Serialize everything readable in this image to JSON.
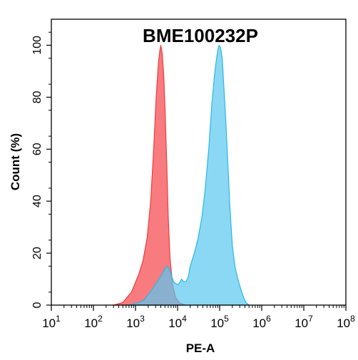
{
  "chart_data": {
    "type": "area",
    "title": "BME100232P",
    "xlabel": "PE-A",
    "ylabel": "Count  (%)",
    "x_scale": "log",
    "xlim": [
      10,
      100000000
    ],
    "ylim": [
      0,
      110
    ],
    "x_ticks": [
      {
        "base": "10",
        "exp": "1",
        "value": 10
      },
      {
        "base": "10",
        "exp": "2",
        "value": 100
      },
      {
        "base": "10",
        "exp": "3",
        "value": 1000
      },
      {
        "base": "10",
        "exp": "4",
        "value": 10000
      },
      {
        "base": "10",
        "exp": "5",
        "value": 100000
      },
      {
        "base": "10",
        "exp": "6",
        "value": 1000000
      },
      {
        "base": "10",
        "exp": "7",
        "value": 10000000
      },
      {
        "base": "10",
        "exp": "8",
        "value": 100000000
      }
    ],
    "y_ticks": [
      "0",
      "20",
      "40",
      "60",
      "80",
      "100"
    ],
    "y_tick_values": [
      0,
      20,
      40,
      60,
      80,
      100
    ],
    "grid": false,
    "legend": "none",
    "series": [
      {
        "color": "#f03c3c",
        "fill": "rgba(245,90,95,0.80)",
        "points": [
          [
            300,
            0
          ],
          [
            500,
            1
          ],
          [
            800,
            5
          ],
          [
            1200,
            12
          ],
          [
            1500,
            17
          ],
          [
            1900,
            26
          ],
          [
            2300,
            40
          ],
          [
            2700,
            60
          ],
          [
            3100,
            80
          ],
          [
            3500,
            93
          ],
          [
            3800,
            98
          ],
          [
            4000,
            100
          ],
          [
            4300,
            97
          ],
          [
            4700,
            88
          ],
          [
            5100,
            73
          ],
          [
            5600,
            52
          ],
          [
            6000,
            34
          ],
          [
            6600,
            18
          ],
          [
            7600,
            8
          ],
          [
            9000,
            3
          ],
          [
            11000,
            1
          ],
          [
            15000,
            0
          ]
        ]
      },
      {
        "color": "#27b8e8",
        "fill": "rgba(90,200,240,0.70)",
        "points": [
          [
            700,
            0
          ],
          [
            1200,
            1
          ],
          [
            1600,
            2
          ],
          [
            2000,
            4
          ],
          [
            2500,
            6
          ],
          [
            3000,
            8
          ],
          [
            3600,
            10
          ],
          [
            4300,
            12
          ],
          [
            5000,
            14
          ],
          [
            5600,
            15
          ],
          [
            6300,
            14
          ],
          [
            7000,
            12
          ],
          [
            8000,
            9
          ],
          [
            9500,
            8
          ],
          [
            10500,
            8
          ],
          [
            11500,
            9
          ],
          [
            12500,
            10
          ],
          [
            14000,
            9
          ],
          [
            16000,
            9
          ],
          [
            18000,
            11
          ],
          [
            20000,
            15
          ],
          [
            25000,
            20
          ],
          [
            31000,
            26
          ],
          [
            38000,
            34
          ],
          [
            45000,
            44
          ],
          [
            55000,
            60
          ],
          [
            65000,
            77
          ],
          [
            75000,
            88
          ],
          [
            83000,
            94
          ],
          [
            90000,
            98
          ],
          [
            97000,
            100
          ],
          [
            105000,
            99
          ],
          [
            115000,
            95
          ],
          [
            125000,
            85
          ],
          [
            140000,
            71
          ],
          [
            155000,
            56
          ],
          [
            175000,
            38
          ],
          [
            200000,
            23
          ],
          [
            230000,
            15
          ],
          [
            270000,
            10
          ],
          [
            320000,
            6
          ],
          [
            370000,
            3
          ],
          [
            420000,
            1
          ],
          [
            500000,
            0
          ]
        ]
      }
    ]
  }
}
